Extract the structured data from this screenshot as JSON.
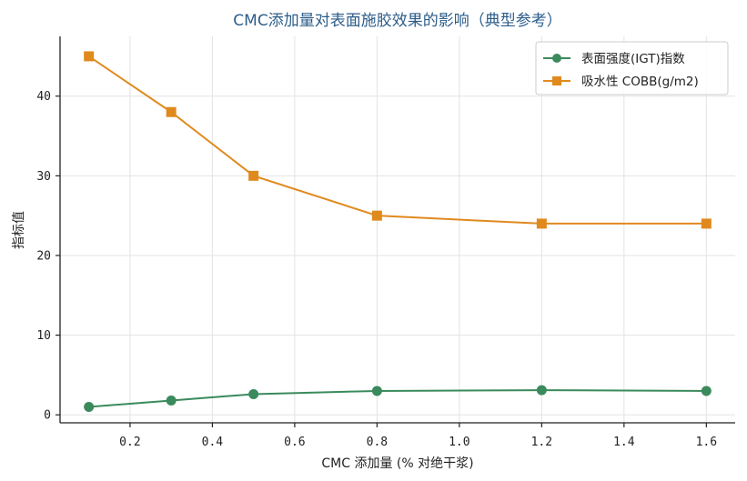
{
  "chart_data": {
    "type": "line",
    "title": "CMC添加量对表面施胶效果的影响（典型参考）",
    "xlabel": "CMC 添加量 (% 对绝干浆)",
    "ylabel": "指标值",
    "xlim": [
      0.03,
      1.67
    ],
    "ylim": [
      -1,
      47.5
    ],
    "xticks": [
      0.2,
      0.4,
      0.6,
      0.8,
      1.0,
      1.2,
      1.4,
      1.6
    ],
    "yticks": [
      0,
      10,
      20,
      30,
      40
    ],
    "grid": true,
    "legend_position": "top-right",
    "x": [
      0.1,
      0.3,
      0.5,
      0.8,
      1.2,
      1.6
    ],
    "series": [
      {
        "name": "表面强度(IGT)指数",
        "values": [
          1.0,
          1.8,
          2.6,
          3.0,
          3.1,
          3.0
        ],
        "color": "#3a8a5c",
        "marker": "circle"
      },
      {
        "name": "吸水性 COBB(g/m2)",
        "values": [
          45,
          38,
          30,
          25,
          24,
          24
        ],
        "color": "#e08a1e",
        "marker": "square"
      }
    ]
  }
}
